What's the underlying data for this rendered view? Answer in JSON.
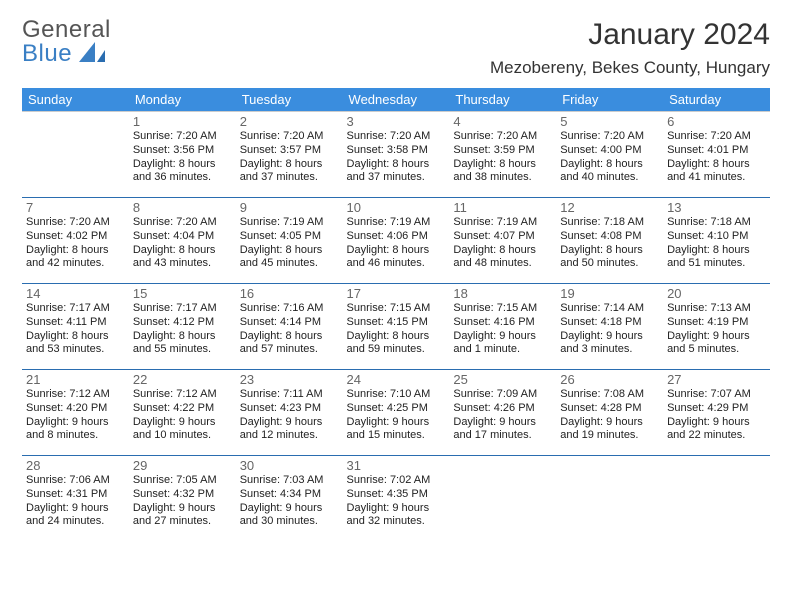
{
  "brand": {
    "top": "General",
    "bottom": "Blue"
  },
  "title": "January 2024",
  "location": "Mezobereny, Bekes County, Hungary",
  "colors": {
    "header_bg": "#3a8dde",
    "header_text": "#ffffff",
    "row_divider": "#2a6db0",
    "brand_blue": "#3a7fc4",
    "text": "#222222"
  },
  "weekdays": [
    "Sunday",
    "Monday",
    "Tuesday",
    "Wednesday",
    "Thursday",
    "Friday",
    "Saturday"
  ],
  "start_weekday_index": 1,
  "days": [
    {
      "n": 1,
      "sunrise": "7:20 AM",
      "sunset": "3:56 PM",
      "daylight": "8 hours and 36 minutes."
    },
    {
      "n": 2,
      "sunrise": "7:20 AM",
      "sunset": "3:57 PM",
      "daylight": "8 hours and 37 minutes."
    },
    {
      "n": 3,
      "sunrise": "7:20 AM",
      "sunset": "3:58 PM",
      "daylight": "8 hours and 37 minutes."
    },
    {
      "n": 4,
      "sunrise": "7:20 AM",
      "sunset": "3:59 PM",
      "daylight": "8 hours and 38 minutes."
    },
    {
      "n": 5,
      "sunrise": "7:20 AM",
      "sunset": "4:00 PM",
      "daylight": "8 hours and 40 minutes."
    },
    {
      "n": 6,
      "sunrise": "7:20 AM",
      "sunset": "4:01 PM",
      "daylight": "8 hours and 41 minutes."
    },
    {
      "n": 7,
      "sunrise": "7:20 AM",
      "sunset": "4:02 PM",
      "daylight": "8 hours and 42 minutes."
    },
    {
      "n": 8,
      "sunrise": "7:20 AM",
      "sunset": "4:04 PM",
      "daylight": "8 hours and 43 minutes."
    },
    {
      "n": 9,
      "sunrise": "7:19 AM",
      "sunset": "4:05 PM",
      "daylight": "8 hours and 45 minutes."
    },
    {
      "n": 10,
      "sunrise": "7:19 AM",
      "sunset": "4:06 PM",
      "daylight": "8 hours and 46 minutes."
    },
    {
      "n": 11,
      "sunrise": "7:19 AM",
      "sunset": "4:07 PM",
      "daylight": "8 hours and 48 minutes."
    },
    {
      "n": 12,
      "sunrise": "7:18 AM",
      "sunset": "4:08 PM",
      "daylight": "8 hours and 50 minutes."
    },
    {
      "n": 13,
      "sunrise": "7:18 AM",
      "sunset": "4:10 PM",
      "daylight": "8 hours and 51 minutes."
    },
    {
      "n": 14,
      "sunrise": "7:17 AM",
      "sunset": "4:11 PM",
      "daylight": "8 hours and 53 minutes."
    },
    {
      "n": 15,
      "sunrise": "7:17 AM",
      "sunset": "4:12 PM",
      "daylight": "8 hours and 55 minutes."
    },
    {
      "n": 16,
      "sunrise": "7:16 AM",
      "sunset": "4:14 PM",
      "daylight": "8 hours and 57 minutes."
    },
    {
      "n": 17,
      "sunrise": "7:15 AM",
      "sunset": "4:15 PM",
      "daylight": "8 hours and 59 minutes."
    },
    {
      "n": 18,
      "sunrise": "7:15 AM",
      "sunset": "4:16 PM",
      "daylight": "9 hours and 1 minute."
    },
    {
      "n": 19,
      "sunrise": "7:14 AM",
      "sunset": "4:18 PM",
      "daylight": "9 hours and 3 minutes."
    },
    {
      "n": 20,
      "sunrise": "7:13 AM",
      "sunset": "4:19 PM",
      "daylight": "9 hours and 5 minutes."
    },
    {
      "n": 21,
      "sunrise": "7:12 AM",
      "sunset": "4:20 PM",
      "daylight": "9 hours and 8 minutes."
    },
    {
      "n": 22,
      "sunrise": "7:12 AM",
      "sunset": "4:22 PM",
      "daylight": "9 hours and 10 minutes."
    },
    {
      "n": 23,
      "sunrise": "7:11 AM",
      "sunset": "4:23 PM",
      "daylight": "9 hours and 12 minutes."
    },
    {
      "n": 24,
      "sunrise": "7:10 AM",
      "sunset": "4:25 PM",
      "daylight": "9 hours and 15 minutes."
    },
    {
      "n": 25,
      "sunrise": "7:09 AM",
      "sunset": "4:26 PM",
      "daylight": "9 hours and 17 minutes."
    },
    {
      "n": 26,
      "sunrise": "7:08 AM",
      "sunset": "4:28 PM",
      "daylight": "9 hours and 19 minutes."
    },
    {
      "n": 27,
      "sunrise": "7:07 AM",
      "sunset": "4:29 PM",
      "daylight": "9 hours and 22 minutes."
    },
    {
      "n": 28,
      "sunrise": "7:06 AM",
      "sunset": "4:31 PM",
      "daylight": "9 hours and 24 minutes."
    },
    {
      "n": 29,
      "sunrise": "7:05 AM",
      "sunset": "4:32 PM",
      "daylight": "9 hours and 27 minutes."
    },
    {
      "n": 30,
      "sunrise": "7:03 AM",
      "sunset": "4:34 PM",
      "daylight": "9 hours and 30 minutes."
    },
    {
      "n": 31,
      "sunrise": "7:02 AM",
      "sunset": "4:35 PM",
      "daylight": "9 hours and 32 minutes."
    }
  ]
}
